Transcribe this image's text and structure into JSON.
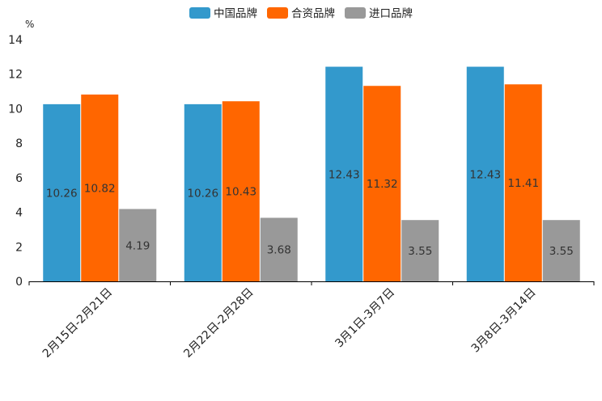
{
  "chart_data": {
    "type": "bar",
    "ylabel": "%",
    "ylim": [
      0,
      14
    ],
    "yticks": [
      0,
      2,
      4,
      6,
      8,
      10,
      12,
      14
    ],
    "categories": [
      "2月15日-2月21日",
      "2月22日-2月28日",
      "3月1日-3月7日",
      "3月8日-3月14日"
    ],
    "series": [
      {
        "name": "中国品牌",
        "color": "#3399cc",
        "values": [
          10.26,
          10.26,
          12.43,
          12.43
        ],
        "labels": [
          "10.26",
          "10.26",
          "12.43",
          "12.43"
        ]
      },
      {
        "name": "合资品牌",
        "color": "#ff6600",
        "values": [
          10.82,
          10.43,
          11.32,
          11.41
        ],
        "labels": [
          "10.82",
          "10.43",
          "11.32",
          "11.41"
        ]
      },
      {
        "name": "进口品牌",
        "color": "#999999",
        "values": [
          4.19,
          3.68,
          3.55,
          3.55
        ],
        "labels": [
          "4.19",
          "3.68",
          "3.55",
          "3.55"
        ]
      }
    ],
    "legend_position": "top-center",
    "grid": false
  }
}
